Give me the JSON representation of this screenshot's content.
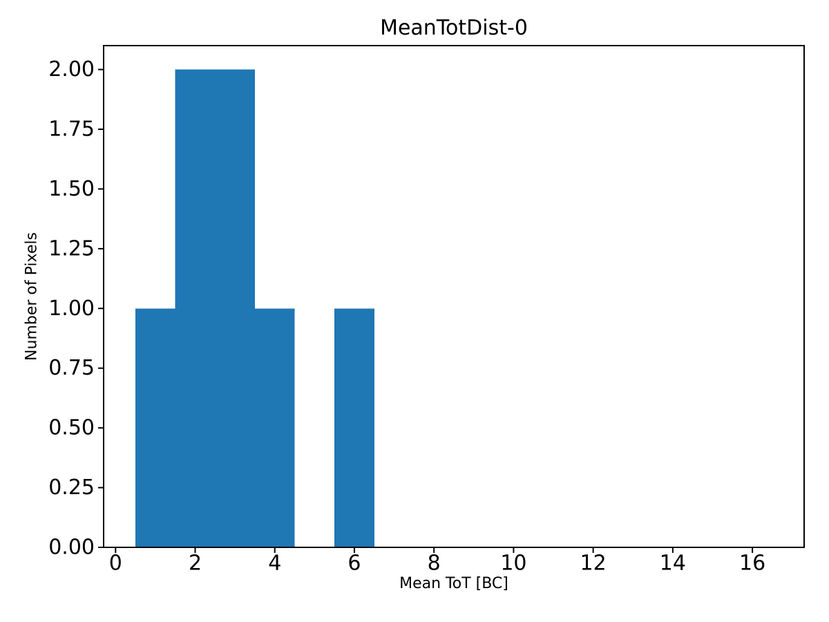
{
  "title": "MeanTotDist-0",
  "chart_data": {
    "type": "bar",
    "subtype": "histogram",
    "title": "MeanTotDist-0",
    "xlabel": "Mean ToT [BC]",
    "ylabel": "Number of Pixels",
    "bar_color": "#1f77b4",
    "bin_edges": [
      0.5,
      1.5,
      2.5,
      3.5,
      4.5,
      5.5,
      6.5,
      7.5,
      8.5,
      9.5,
      10.5,
      11.5,
      12.5,
      13.5,
      14.5,
      15.5,
      16.5
    ],
    "counts": [
      1,
      2,
      2,
      1,
      0,
      1,
      0,
      0,
      0,
      0,
      0,
      0,
      0,
      0,
      0,
      0
    ],
    "xlim": [
      -0.3,
      17.3
    ],
    "ylim": [
      0,
      2.1
    ],
    "xticks": [
      0,
      2,
      4,
      6,
      8,
      10,
      12,
      14,
      16
    ],
    "xtick_labels": [
      "0",
      "2",
      "4",
      "6",
      "8",
      "10",
      "12",
      "14",
      "16"
    ],
    "yticks": [
      0.0,
      0.25,
      0.5,
      0.75,
      1.0,
      1.25,
      1.5,
      1.75,
      2.0
    ],
    "ytick_labels": [
      "0.00",
      "0.25",
      "0.50",
      "0.75",
      "1.00",
      "1.25",
      "1.50",
      "1.75",
      "2.00"
    ],
    "grid": false,
    "legend": null
  }
}
